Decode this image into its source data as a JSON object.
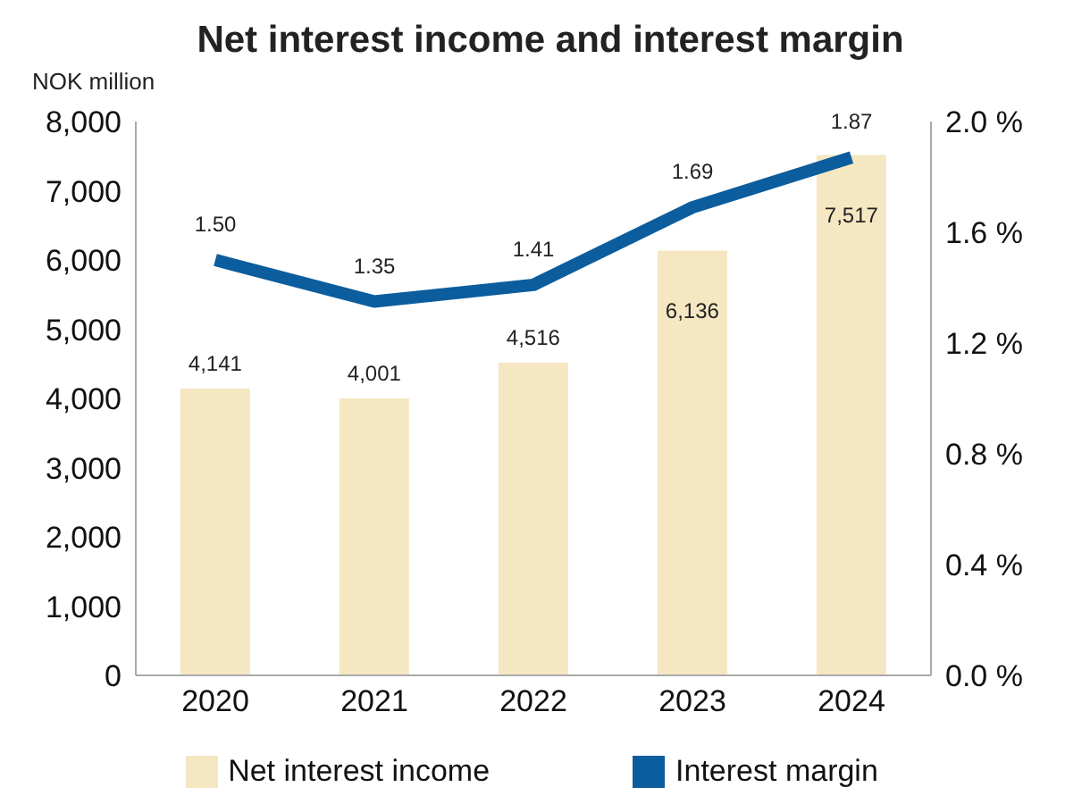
{
  "chart_data": {
    "type": "bar",
    "title": "Net interest income and interest margin",
    "ylabel": "NOK million",
    "categories": [
      "2020",
      "2021",
      "2022",
      "2023",
      "2024"
    ],
    "series": [
      {
        "name": "Net interest income",
        "color": "#f5e7c2",
        "values": [
          4141,
          4001,
          4516,
          6136,
          7517
        ],
        "value_labels": [
          "4,141",
          "4,001",
          "4,516",
          "6,136",
          "7,517"
        ]
      },
      {
        "name": "Interest margin",
        "type": "line",
        "axis": "y2",
        "color": "#0b5d9e",
        "values": [
          1.5,
          1.35,
          1.41,
          1.69,
          1.87
        ],
        "value_labels": [
          "1.50",
          "1.35",
          "1.41",
          "1.69",
          "1.87"
        ]
      }
    ],
    "ylim": [
      0,
      8000
    ],
    "yticks": [
      0,
      {
        "value": 1000,
        "label": "1,000"
      },
      {
        "value": 2000,
        "label": "2,000"
      },
      {
        "value": 3000,
        "label": "3,000"
      },
      {
        "value": 4000,
        "label": "4,000"
      },
      {
        "value": 5000,
        "label": "5,000"
      },
      {
        "value": 6000,
        "label": "6,000"
      },
      {
        "value": 7000,
        "label": "7,000"
      },
      {
        "value": 8000,
        "label": "8,000"
      }
    ],
    "y2lim": [
      0,
      2
    ],
    "y2ticks": [
      {
        "value": 0,
        "label": "0.0 %"
      },
      {
        "value": 0.4,
        "label": "0.4 %"
      },
      {
        "value": 0.8,
        "label": "0.8 %"
      },
      {
        "value": 1.2,
        "label": "1.2 %"
      },
      {
        "value": 1.6,
        "label": "1.6 %"
      },
      {
        "value": 2,
        "label": "2.0 %"
      }
    ],
    "grid": false,
    "legend": "bottom",
    "marker": "none",
    "line_style": "solid"
  }
}
